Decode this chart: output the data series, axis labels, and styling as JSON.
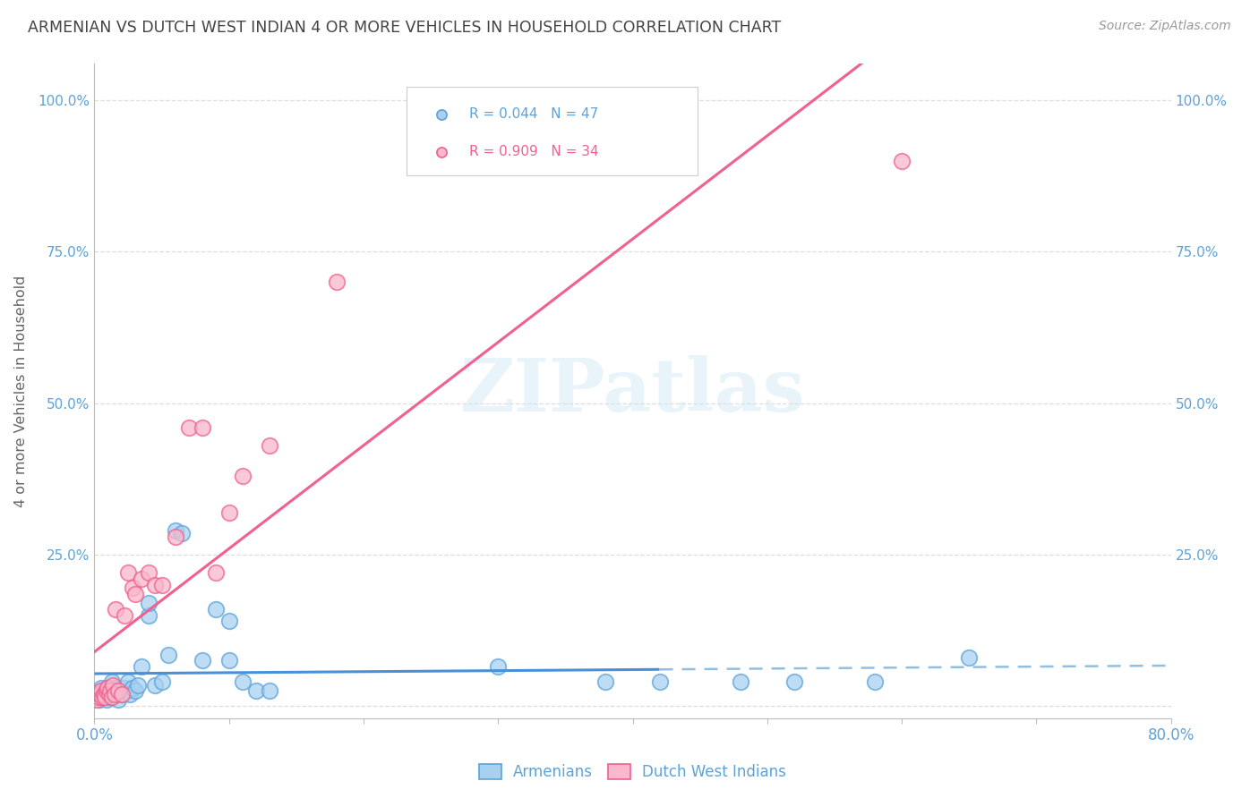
{
  "title": "ARMENIAN VS DUTCH WEST INDIAN 4 OR MORE VEHICLES IN HOUSEHOLD CORRELATION CHART",
  "source": "Source: ZipAtlas.com",
  "ylabel": "4 or more Vehicles in Household",
  "xmin": 0.0,
  "xmax": 0.8,
  "ymin": -0.02,
  "ymax": 1.06,
  "yticks": [
    0.0,
    0.25,
    0.5,
    0.75,
    1.0
  ],
  "legend_armenian": "Armenians",
  "legend_dutch": "Dutch West Indians",
  "r_armenian": "R = 0.044",
  "n_armenian": "N = 47",
  "r_dutch": "R = 0.909",
  "n_dutch": "N = 34",
  "color_armenian_fill": "#a8d1f0",
  "color_armenian_edge": "#5ba3d9",
  "color_dutch_fill": "#f9b8cb",
  "color_dutch_edge": "#f06090",
  "color_line_armenian_solid": "#4a90d9",
  "color_line_armenian_dashed": "#90bfe0",
  "color_line_dutch": "#f06090",
  "watermark": "ZIPatlas",
  "background_color": "#ffffff",
  "armenian_x": [
    0.002,
    0.004,
    0.005,
    0.006,
    0.007,
    0.008,
    0.009,
    0.01,
    0.01,
    0.011,
    0.012,
    0.013,
    0.014,
    0.015,
    0.016,
    0.017,
    0.018,
    0.02,
    0.022,
    0.024,
    0.025,
    0.026,
    0.028,
    0.03,
    0.032,
    0.035,
    0.04,
    0.04,
    0.045,
    0.05,
    0.055,
    0.06,
    0.065,
    0.08,
    0.09,
    0.1,
    0.1,
    0.11,
    0.12,
    0.13,
    0.3,
    0.38,
    0.42,
    0.48,
    0.52,
    0.58,
    0.65
  ],
  "armenian_y": [
    0.02,
    0.01,
    0.03,
    0.02,
    0.015,
    0.025,
    0.01,
    0.025,
    0.03,
    0.02,
    0.015,
    0.04,
    0.02,
    0.03,
    0.025,
    0.02,
    0.01,
    0.02,
    0.03,
    0.025,
    0.04,
    0.02,
    0.03,
    0.025,
    0.035,
    0.065,
    0.15,
    0.17,
    0.035,
    0.04,
    0.085,
    0.29,
    0.285,
    0.075,
    0.16,
    0.075,
    0.14,
    0.04,
    0.025,
    0.025,
    0.065,
    0.04,
    0.04,
    0.04,
    0.04,
    0.04,
    0.08
  ],
  "dutch_x": [
    0.002,
    0.003,
    0.004,
    0.005,
    0.006,
    0.007,
    0.008,
    0.009,
    0.01,
    0.011,
    0.012,
    0.013,
    0.014,
    0.015,
    0.016,
    0.018,
    0.02,
    0.022,
    0.025,
    0.028,
    0.03,
    0.035,
    0.04,
    0.045,
    0.05,
    0.06,
    0.07,
    0.08,
    0.09,
    0.1,
    0.11,
    0.13,
    0.18,
    0.6
  ],
  "dutch_y": [
    0.01,
    0.015,
    0.02,
    0.025,
    0.015,
    0.02,
    0.015,
    0.025,
    0.03,
    0.02,
    0.025,
    0.015,
    0.035,
    0.02,
    0.16,
    0.025,
    0.02,
    0.15,
    0.22,
    0.195,
    0.185,
    0.21,
    0.22,
    0.2,
    0.2,
    0.28,
    0.46,
    0.46,
    0.22,
    0.32,
    0.38,
    0.43,
    0.7,
    0.9
  ],
  "line_armenian_solid_xend": 0.42,
  "grid_color": "#dddddd",
  "title_color": "#444444",
  "axis_color": "#5ba3d9",
  "title_fontsize": 12.5
}
